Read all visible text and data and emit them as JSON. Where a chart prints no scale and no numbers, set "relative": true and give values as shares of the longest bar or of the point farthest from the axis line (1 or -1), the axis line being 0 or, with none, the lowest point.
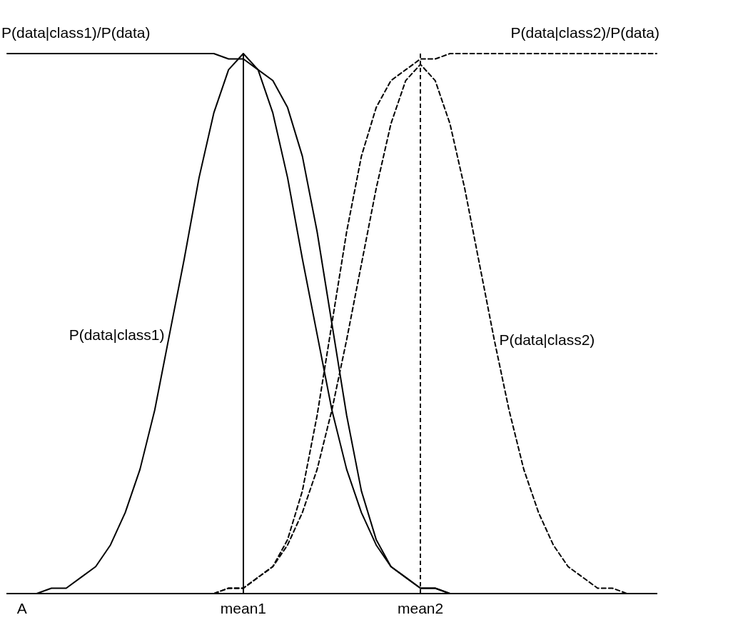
{
  "chart_data": {
    "type": "line",
    "relative": true,
    "categories": [
      null,
      "A",
      null,
      null,
      null,
      null,
      null,
      null,
      null,
      null,
      null,
      null,
      null,
      null,
      null,
      null,
      "mean1",
      null,
      null,
      null,
      null,
      null,
      null,
      null,
      null,
      null,
      null,
      null,
      "mean2",
      null,
      null,
      null,
      null,
      null,
      null,
      null,
      null,
      null,
      null,
      null,
      null,
      null,
      null,
      null,
      null
    ],
    "series": [
      {
        "name": "P(data|class1)/P(data)",
        "color": "#000000",
        "line_style": "solid",
        "values": [
          1,
          1,
          1,
          1,
          1,
          1,
          1,
          1,
          1,
          1,
          1,
          1,
          1,
          1,
          1,
          0.99,
          0.99,
          0.97,
          0.95,
          0.9,
          0.81,
          0.67,
          0.5,
          0.33,
          0.19,
          0.1,
          0.05,
          0.03,
          0.01,
          0.01,
          0,
          0,
          0,
          0,
          0,
          0,
          0,
          0,
          0,
          0,
          0,
          0,
          0,
          0,
          0
        ]
      },
      {
        "name": "P(data|class2)/P(data)",
        "color": "#000000",
        "line_style": "dashed",
        "values": [
          0,
          0,
          0,
          0,
          0,
          0,
          0,
          0,
          0,
          0,
          0,
          0,
          0,
          0,
          0,
          0.01,
          0.01,
          0.03,
          0.05,
          0.1,
          0.19,
          0.33,
          0.5,
          0.67,
          0.81,
          0.9,
          0.95,
          0.97,
          0.99,
          0.99,
          1,
          1,
          1,
          1,
          1,
          1,
          1,
          1,
          1,
          1,
          1,
          1,
          1,
          1,
          1
        ]
      },
      {
        "name": "P(data|class1)",
        "color": "#000000",
        "line_style": "solid",
        "values": [
          0,
          0,
          0,
          0.01,
          0.01,
          0.03,
          0.05,
          0.09,
          0.15,
          0.23,
          0.34,
          0.48,
          0.62,
          0.77,
          0.89,
          0.97,
          1,
          0.97,
          0.89,
          0.77,
          0.62,
          0.48,
          0.34,
          0.23,
          0.15,
          0.09,
          0.05,
          0.03,
          0.01,
          0.01,
          0,
          0,
          0,
          0,
          0,
          0,
          0,
          0,
          0,
          0,
          0,
          0,
          0,
          0,
          0
        ]
      },
      {
        "name": "P(data|class2)",
        "color": "#000000",
        "line_style": "dashed",
        "values": [
          0,
          0,
          0,
          0,
          0,
          0,
          0,
          0,
          0,
          0,
          0,
          0,
          0,
          0,
          0,
          0.01,
          0.01,
          0.03,
          0.05,
          0.09,
          0.15,
          0.23,
          0.34,
          0.47,
          0.61,
          0.75,
          0.87,
          0.95,
          0.98,
          0.95,
          0.87,
          0.75,
          0.61,
          0.47,
          0.34,
          0.23,
          0.15,
          0.09,
          0.05,
          0.03,
          0.01,
          0.01,
          0,
          0,
          0
        ]
      }
    ],
    "ref_lines": [
      {
        "axis": "x",
        "value": "mean1",
        "line_style": "solid",
        "color": "#000000"
      },
      {
        "axis": "x",
        "value": "mean2",
        "line_style": "dashed",
        "color": "#000000"
      }
    ],
    "marker": "none",
    "grid": false,
    "legend": false
  }
}
